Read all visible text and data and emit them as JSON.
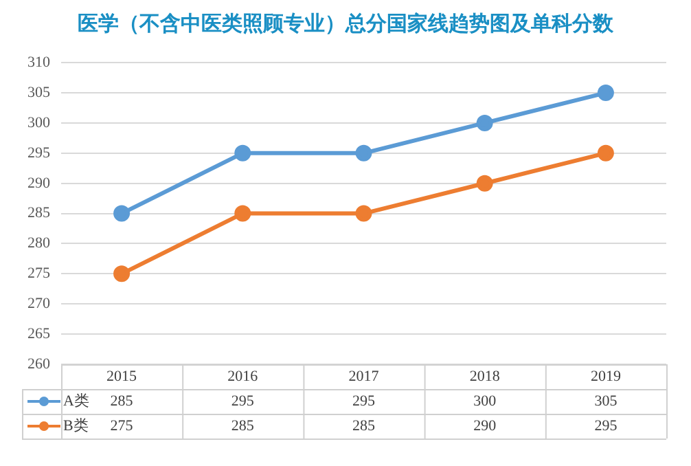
{
  "chart_data": {
    "type": "line",
    "title": "医学（不含中医类照顾专业）总分国家线趋势图及单科分数",
    "categories": [
      "2015",
      "2016",
      "2017",
      "2018",
      "2019"
    ],
    "series": [
      {
        "name": "A类",
        "color": "#5b9bd5",
        "values": [
          285,
          295,
          295,
          300,
          305
        ]
      },
      {
        "name": "B类",
        "color": "#ed7d31",
        "values": [
          275,
          285,
          285,
          290,
          295
        ]
      }
    ],
    "ylim": [
      260,
      310
    ],
    "yticks": [
      260,
      265,
      270,
      275,
      280,
      285,
      290,
      295,
      300,
      305,
      310
    ],
    "grid": "y",
    "legend": "bottom",
    "marker": "circle",
    "line_style": "solid",
    "data_labels": true
  }
}
